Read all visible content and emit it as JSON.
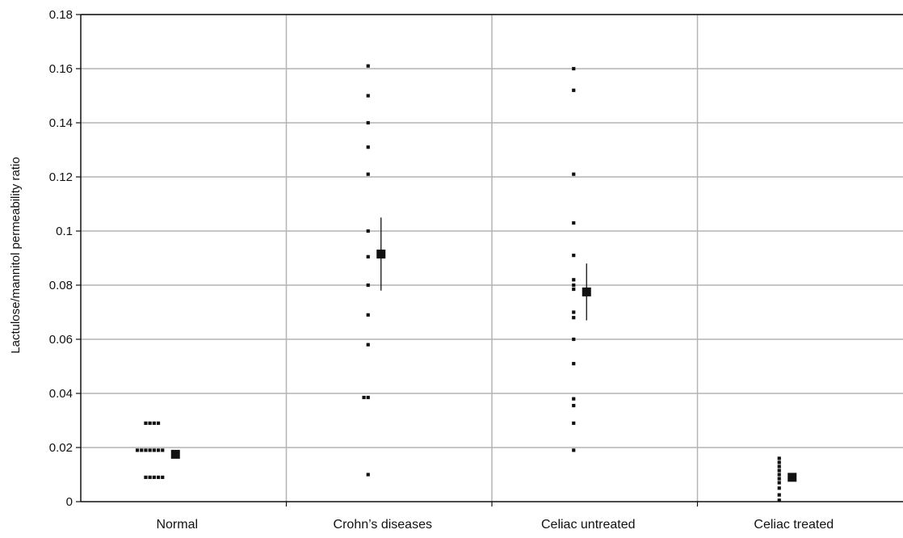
{
  "chart_data": {
    "type": "scatter",
    "title": "",
    "xlabel": "",
    "ylabel": "Lactulose/mannitol permeability ratio",
    "categories": [
      "Normal",
      "Crohn’s diseases",
      "Celiac untreated",
      "Celiac treated"
    ],
    "ylim": [
      0,
      0.18
    ],
    "yticks": [
      "0",
      "0.02",
      "0.04",
      "0.06",
      "0.08",
      "0.1",
      "0.12",
      "0.14",
      "0.16",
      "0.18"
    ],
    "grid": true,
    "legend": "none",
    "series": [
      {
        "category": "Normal",
        "points": [
          {
            "offset": -4,
            "y": 0.029
          },
          {
            "offset": -3,
            "y": 0.029
          },
          {
            "offset": -2,
            "y": 0.029
          },
          {
            "offset": -1,
            "y": 0.029
          },
          {
            "offset": -6,
            "y": 0.019
          },
          {
            "offset": -5,
            "y": 0.019
          },
          {
            "offset": -4,
            "y": 0.019
          },
          {
            "offset": -3,
            "y": 0.019
          },
          {
            "offset": -2,
            "y": 0.019
          },
          {
            "offset": -1,
            "y": 0.019
          },
          {
            "offset": 0,
            "y": 0.019
          },
          {
            "offset": -4,
            "y": 0.009
          },
          {
            "offset": -3,
            "y": 0.009
          },
          {
            "offset": -2,
            "y": 0.009
          },
          {
            "offset": -1,
            "y": 0.009
          },
          {
            "offset": 0,
            "y": 0.009
          }
        ],
        "mean": 0.0175,
        "error": [
          0.0175,
          0.0175
        ]
      },
      {
        "category": "Crohn’s diseases",
        "points": [
          {
            "offset": 0,
            "y": 0.161
          },
          {
            "offset": 0,
            "y": 0.15
          },
          {
            "offset": 0,
            "y": 0.14
          },
          {
            "offset": 0,
            "y": 0.131
          },
          {
            "offset": 0,
            "y": 0.121
          },
          {
            "offset": 0,
            "y": 0.1
          },
          {
            "offset": 0,
            "y": 0.0905
          },
          {
            "offset": 0,
            "y": 0.08
          },
          {
            "offset": 0,
            "y": 0.069
          },
          {
            "offset": 0,
            "y": 0.058
          },
          {
            "offset": -1,
            "y": 0.0385
          },
          {
            "offset": 0,
            "y": 0.0385
          },
          {
            "offset": 0,
            "y": 0.01
          }
        ],
        "mean": 0.0915,
        "error": [
          0.078,
          0.105
        ]
      },
      {
        "category": "Celiac untreated",
        "points": [
          {
            "offset": 0,
            "y": 0.16
          },
          {
            "offset": 0,
            "y": 0.152
          },
          {
            "offset": 0,
            "y": 0.121
          },
          {
            "offset": 0,
            "y": 0.103
          },
          {
            "offset": 0,
            "y": 0.091
          },
          {
            "offset": 0,
            "y": 0.082
          },
          {
            "offset": 0,
            "y": 0.08
          },
          {
            "offset": 0,
            "y": 0.0785
          },
          {
            "offset": 0,
            "y": 0.07
          },
          {
            "offset": 0,
            "y": 0.068
          },
          {
            "offset": 0,
            "y": 0.06
          },
          {
            "offset": 0,
            "y": 0.051
          },
          {
            "offset": 0,
            "y": 0.038
          },
          {
            "offset": 0,
            "y": 0.0355
          },
          {
            "offset": 0,
            "y": 0.029
          },
          {
            "offset": 0,
            "y": 0.019
          }
        ],
        "mean": 0.0775,
        "error": [
          0.067,
          0.088
        ]
      },
      {
        "category": "Celiac treated",
        "points": [
          {
            "offset": 0,
            "y": 0.016
          },
          {
            "offset": 0,
            "y": 0.0145
          },
          {
            "offset": 0,
            "y": 0.013
          },
          {
            "offset": 0,
            "y": 0.0115
          },
          {
            "offset": 0,
            "y": 0.01
          },
          {
            "offset": 0,
            "y": 0.0085
          },
          {
            "offset": 0,
            "y": 0.007
          },
          {
            "offset": 0,
            "y": 0.005
          },
          {
            "offset": 0,
            "y": 0.0025
          },
          {
            "offset": 0,
            "y": 0.0005
          }
        ],
        "mean": 0.009,
        "error": [
          0.009,
          0.009
        ]
      }
    ],
    "colors": {
      "marker": "#111111",
      "grid": "#b4b4b4",
      "axis": "#111111",
      "text": "#111111"
    }
  }
}
